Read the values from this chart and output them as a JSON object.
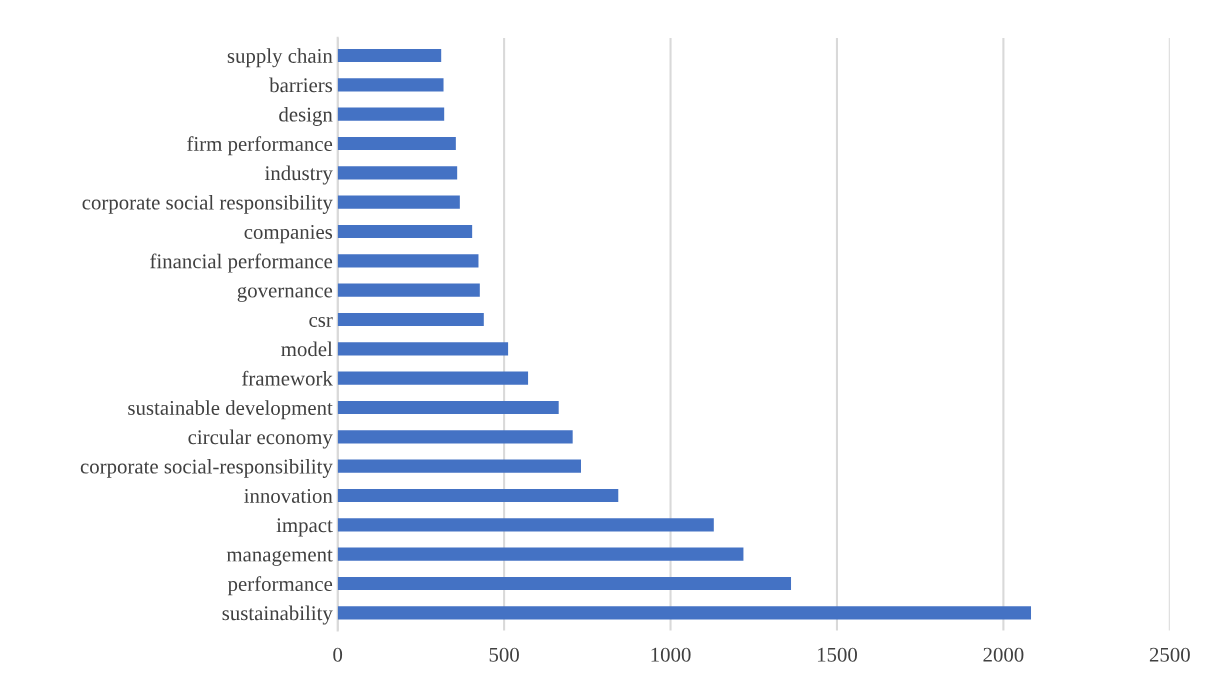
{
  "chart_data": {
    "type": "bar",
    "orientation": "horizontal",
    "categories": [
      "supply chain",
      "barriers",
      "design",
      "firm performance",
      "industry",
      "corporate social responsibility",
      "companies",
      "financial performance",
      "governance",
      "csr",
      "model",
      "framework",
      "sustainable development",
      "circular economy",
      "corporate social-responsibility",
      "innovation",
      "impact",
      "management",
      "performance",
      "sustainability"
    ],
    "values": [
      311,
      318,
      320,
      355,
      359,
      367,
      404,
      423,
      427,
      439,
      512,
      572,
      664,
      706,
      731,
      843,
      1130,
      1219,
      1362,
      2083
    ],
    "color": "#4472c4",
    "xlim": [
      0,
      2500
    ],
    "xticks": [
      0,
      500,
      1000,
      1500,
      2000,
      2500
    ],
    "grid": "x"
  }
}
